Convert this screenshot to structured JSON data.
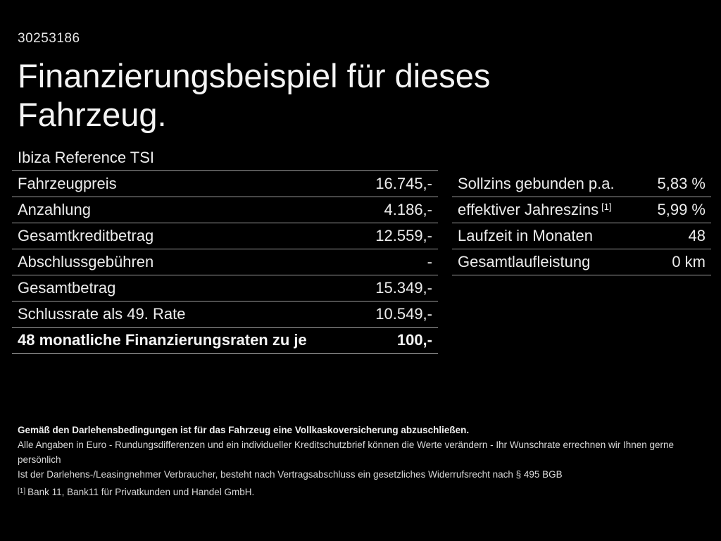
{
  "page": {
    "id_number": "30253186",
    "title_line1": "Finanzierungsbeispiel für dieses",
    "title_line2": "Fahrzeug.",
    "vehicle_model": "Ibiza Reference TSI"
  },
  "left_table": {
    "rows": [
      {
        "label": "Fahrzeugpreis",
        "value": "16.745,-"
      },
      {
        "label": "Anzahlung",
        "value": "4.186,-"
      },
      {
        "label": "Gesamtkreditbetrag",
        "value": "12.559,-"
      },
      {
        "label": "Abschlussgebühren",
        "value": "-"
      },
      {
        "label": "Gesamtbetrag",
        "value": "15.349,-"
      },
      {
        "label": "Schlussrate als 49. Rate",
        "value": "10.549,-"
      },
      {
        "label": "48 monatliche Finanzierungsraten zu je",
        "value": "100,-"
      }
    ]
  },
  "right_table": {
    "rows": [
      {
        "label": "Sollzins gebunden p.a.",
        "sup": "",
        "value": "5,83 %"
      },
      {
        "label": "effektiver Jahreszins",
        "sup": "[1]",
        "value": "5,99 %"
      },
      {
        "label": "Laufzeit in Monaten",
        "sup": "",
        "value": "48"
      },
      {
        "label": "Gesamtlaufleistung",
        "sup": "",
        "value": "0 km"
      }
    ]
  },
  "footnotes": {
    "line1": "Gemäß den Darlehensbedingungen ist für das Fahrzeug eine Vollkaskoversicherung abzuschließen.",
    "line2": "Alle Angaben in Euro - Rundungsdifferenzen und ein individueller Kreditschutzbrief können die Werte verändern - Ihr Wunschrate errechnen wir Ihnen gerne persönlich",
    "line3": "Ist der Darlehens-/Leasingnehmer Verbraucher, besteht nach Vertragsabschluss ein gesetzliches Widerrufsrecht nach § 495 BGB",
    "line4_marker": "[1]",
    "line4_text": "Bank 11, Bank11 für Privatkunden und Handel GmbH."
  },
  "colors": {
    "background": "#000000",
    "text": "#ececec",
    "rule": "#9e9e9e"
  }
}
